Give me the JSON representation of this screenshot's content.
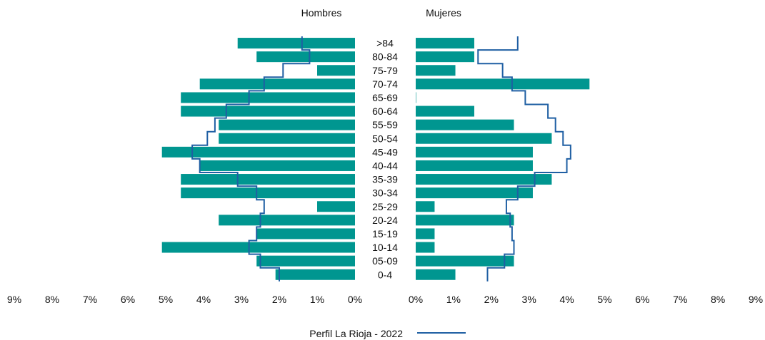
{
  "chart_data": {
    "type": "bar",
    "title": "",
    "xlabel": "",
    "ylabel": "",
    "xlim": [
      0,
      9
    ],
    "x_ticks": [
      "9%",
      "8%",
      "7%",
      "6%",
      "5%",
      "4%",
      "3%",
      "2%",
      "1%",
      "0%",
      "0%",
      "1%",
      "2%",
      "3%",
      "4%",
      "5%",
      "6%",
      "7%",
      "8%",
      "9%"
    ],
    "grid": false,
    "legend_position": "bottom",
    "categories": [
      ">84",
      "80-84",
      "75-79",
      "70-74",
      "65-69",
      "60-64",
      "55-59",
      "50-54",
      "45-49",
      "40-44",
      "35-39",
      "30-34",
      "25-29",
      "20-24",
      "15-19",
      "10-14",
      "05-09",
      "0-4"
    ],
    "panels": {
      "left_title": "Hombres",
      "right_title": "Mujeres"
    },
    "series": [
      {
        "side": "left",
        "kind": "bars",
        "values": [
          3.1,
          2.6,
          1.0,
          4.1,
          4.6,
          4.6,
          3.6,
          3.6,
          5.1,
          4.1,
          4.6,
          4.6,
          1.0,
          3.6,
          2.6,
          5.1,
          2.6,
          2.1
        ],
        "color": "#009690"
      },
      {
        "side": "right",
        "kind": "bars",
        "values": [
          1.55,
          1.55,
          1.05,
          4.6,
          0.0,
          1.55,
          2.6,
          3.6,
          3.1,
          3.1,
          3.6,
          3.1,
          0.5,
          2.6,
          0.5,
          0.5,
          2.6,
          1.05
        ],
        "color": "#009690"
      },
      {
        "name": "Perfil La Rioja - 2022",
        "side": "left",
        "kind": "profile",
        "values": [
          1.4,
          1.2,
          1.9,
          2.4,
          2.8,
          3.4,
          3.7,
          3.9,
          4.3,
          4.1,
          3.1,
          2.6,
          2.4,
          2.5,
          2.6,
          2.8,
          2.5,
          2.0
        ],
        "color": "#1f5fa3"
      },
      {
        "name": "Perfil La Rioja - 2022",
        "side": "right",
        "kind": "profile",
        "values": [
          2.7,
          1.65,
          2.3,
          2.55,
          2.9,
          3.5,
          3.7,
          3.9,
          4.1,
          4.0,
          3.15,
          2.7,
          2.4,
          2.5,
          2.55,
          2.6,
          2.35,
          1.9
        ],
        "color": "#1f5fa3"
      }
    ],
    "legend": {
      "label": "Perfil La Rioja - 2022",
      "color": "#1f5fa3"
    }
  }
}
